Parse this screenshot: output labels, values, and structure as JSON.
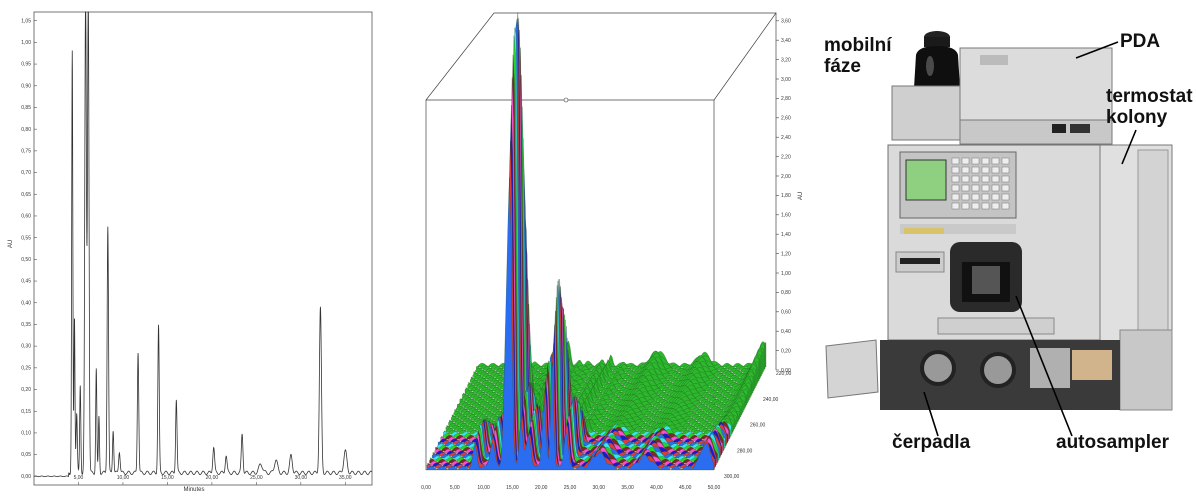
{
  "chart_data": [
    {
      "type": "line",
      "title": "",
      "xlabel": "Minutes",
      "ylabel": "AU",
      "xlim": [
        0,
        38
      ],
      "ylim": [
        -0.02,
        1.07
      ],
      "x_ticks": [
        "5,00",
        "10,00",
        "15,00",
        "20,00",
        "25,00",
        "30,00",
        "35,00"
      ],
      "y_ticks": [
        "0,00",
        "0,05",
        "0,10",
        "0,15",
        "0,20",
        "0,25",
        "0,30",
        "0,35",
        "0,40",
        "0,45",
        "0,50",
        "0,55",
        "0,60",
        "0,65",
        "0,70",
        "0,75",
        "0,80",
        "0,85",
        "0,90",
        "0,95",
        "1,00",
        "1,05"
      ],
      "grid": false,
      "peaks": [
        {
          "x": 4.3,
          "y": 0.97,
          "w": 0.09
        },
        {
          "x": 4.55,
          "y": 0.36,
          "w": 0.08
        },
        {
          "x": 4.8,
          "y": 0.14,
          "w": 0.1
        },
        {
          "x": 5.2,
          "y": 0.2,
          "w": 0.09
        },
        {
          "x": 5.8,
          "y": 1.1,
          "w": 0.13
        },
        {
          "x": 6.1,
          "y": 1.1,
          "w": 0.12
        },
        {
          "x": 7.0,
          "y": 0.24,
          "w": 0.09
        },
        {
          "x": 7.3,
          "y": 0.13,
          "w": 0.09
        },
        {
          "x": 8.3,
          "y": 0.57,
          "w": 0.11
        },
        {
          "x": 8.9,
          "y": 0.1,
          "w": 0.1
        },
        {
          "x": 9.6,
          "y": 0.05,
          "w": 0.12
        },
        {
          "x": 11.7,
          "y": 0.28,
          "w": 0.11
        },
        {
          "x": 14.0,
          "y": 0.34,
          "w": 0.11
        },
        {
          "x": 16.0,
          "y": 0.17,
          "w": 0.11
        },
        {
          "x": 20.2,
          "y": 0.06,
          "w": 0.14
        },
        {
          "x": 21.6,
          "y": 0.04,
          "w": 0.14
        },
        {
          "x": 23.4,
          "y": 0.09,
          "w": 0.13
        },
        {
          "x": 25.5,
          "y": 0.02,
          "w": 0.3
        },
        {
          "x": 27.2,
          "y": 0.03,
          "w": 0.25
        },
        {
          "x": 28.9,
          "y": 0.04,
          "w": 0.2
        },
        {
          "x": 32.2,
          "y": 0.38,
          "w": 0.16
        },
        {
          "x": 35.0,
          "y": 0.05,
          "w": 0.25
        }
      ]
    },
    {
      "type": "area",
      "title": "",
      "xlabel": "",
      "ylabel": "AU",
      "xlim": [
        0,
        50
      ],
      "zlim": [
        0,
        3.7
      ],
      "x_ticks": [
        "0,00",
        "5,00",
        "10,00",
        "15,00",
        "20,00",
        "25,00",
        "30,00",
        "35,00",
        "40,00",
        "45,00",
        "50,00"
      ],
      "z_ticks": [
        "0,00",
        "0,20",
        "0,40",
        "0,60",
        "0,80",
        "1,00",
        "1,20",
        "1,40",
        "1,60",
        "1,80",
        "2,00",
        "2,20",
        "2,40",
        "2,60",
        "2,80",
        "3,00",
        "3,20",
        "3,40",
        "3,60"
      ],
      "depth_ticks": [
        "220,00",
        "240,00",
        "260,00",
        "280,00",
        "300,00"
      ],
      "peaks": [
        {
          "x": 8.5,
          "h": 0.35,
          "w": 0.5
        },
        {
          "x": 11.5,
          "h": 0.4,
          "w": 0.6
        },
        {
          "x": 14.6,
          "h": 3.65,
          "w": 0.45
        },
        {
          "x": 14.0,
          "h": 2.4,
          "w": 0.6
        },
        {
          "x": 16.5,
          "h": 0.75,
          "w": 0.45
        },
        {
          "x": 17.8,
          "h": 0.5,
          "w": 0.6
        },
        {
          "x": 20.5,
          "h": 1.1,
          "w": 0.45
        },
        {
          "x": 21.9,
          "h": 1.85,
          "w": 0.35
        },
        {
          "x": 24.3,
          "h": 0.6,
          "w": 0.5
        },
        {
          "x": 30.0,
          "h": 0.15,
          "w": 1.5
        },
        {
          "x": 38.0,
          "h": 0.12,
          "w": 1.5
        },
        {
          "x": 48.5,
          "h": 0.25,
          "w": 1.2
        }
      ],
      "band_colors": [
        "#2a6df0",
        "#e03b3b",
        "#1a1acc",
        "#ff4dd2",
        "#7a2a2a",
        "#2ad12a",
        "#36e6f0"
      ],
      "base_color": "#2db82d"
    }
  ],
  "instrument": {
    "labels": {
      "mobile_phase": "mobilní\nfáze",
      "pda": "PDA",
      "column_thermostat": "termostat\nkolony",
      "pumps": "čerpadla",
      "autosampler": "autosampler"
    },
    "colors": {
      "body": "#d9d9d9",
      "shadow": "#8a8a8a",
      "screen": "#8fd080"
    }
  }
}
